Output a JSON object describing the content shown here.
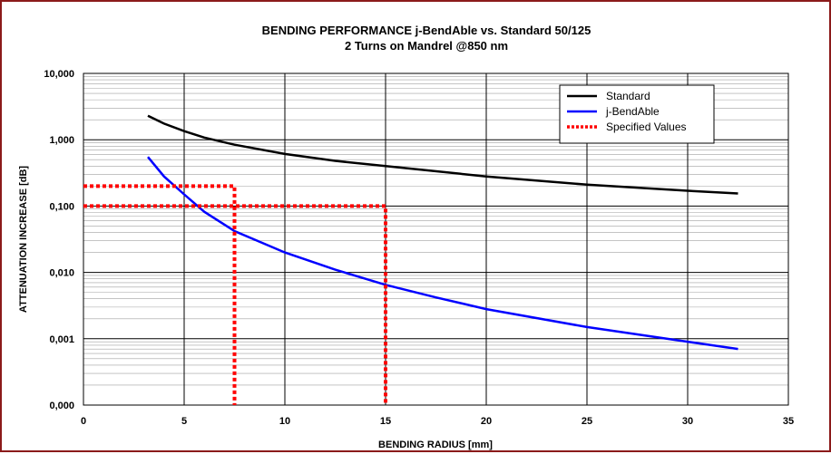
{
  "chart_data": {
    "type": "line",
    "title": "BENDING PERFORMANCE j-BendAble vs. Standard 50/125",
    "subtitle": "2 Turns on Mandrel @850 nm",
    "xlabel": "BENDING RADIUS [mm]",
    "ylabel": "ATTENUATION INCREASE [dB]",
    "xlim": [
      0,
      35
    ],
    "ylim": [
      0.0001,
      10
    ],
    "y_scale": "log",
    "grid": true,
    "legend_position": "top-right",
    "x_ticks": [
      "0",
      "5",
      "10",
      "15",
      "20",
      "25",
      "30",
      "35"
    ],
    "y_ticks": [
      "10,000",
      "1,000",
      "0,100",
      "0,010",
      "0,001",
      "0,000"
    ],
    "y_tick_values": [
      10,
      1,
      0.1,
      0.01,
      0.001,
      0.0001
    ],
    "series": [
      {
        "name": "Standard",
        "color": "#000000",
        "style": "solid",
        "x": [
          3.2,
          4,
          5,
          6,
          7.5,
          10,
          12.5,
          15,
          20,
          25,
          30,
          32.5
        ],
        "y": [
          2.3,
          1.75,
          1.35,
          1.08,
          0.84,
          0.61,
          0.48,
          0.4,
          0.28,
          0.21,
          0.17,
          0.155
        ]
      },
      {
        "name": "j-BendAble",
        "color": "#0000ff",
        "style": "solid",
        "x": [
          3.2,
          4,
          5,
          6,
          7.5,
          10,
          12.5,
          15,
          17.5,
          20,
          25,
          30,
          32.5
        ],
        "y": [
          0.55,
          0.28,
          0.15,
          0.082,
          0.042,
          0.02,
          0.011,
          0.0065,
          0.0042,
          0.0028,
          0.0015,
          0.0009,
          0.0007
        ]
      },
      {
        "name": "Specified Values",
        "color": "#ff0000",
        "style": "dotted",
        "segments": [
          {
            "x": [
              0,
              7.5,
              7.5
            ],
            "y": [
              0.2,
              0.2,
              0.0001
            ]
          },
          {
            "x": [
              0,
              15,
              15
            ],
            "y": [
              0.1,
              0.1,
              0.0001
            ]
          }
        ]
      }
    ]
  }
}
